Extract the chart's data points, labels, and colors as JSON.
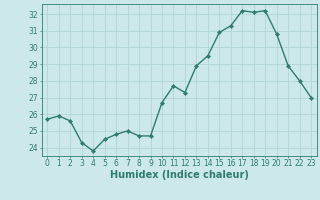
{
  "x": [
    0,
    1,
    2,
    3,
    4,
    5,
    6,
    7,
    8,
    9,
    10,
    11,
    12,
    13,
    14,
    15,
    16,
    17,
    18,
    19,
    20,
    21,
    22,
    23
  ],
  "y": [
    25.7,
    25.9,
    25.6,
    24.3,
    23.8,
    24.5,
    24.8,
    25.0,
    24.7,
    24.7,
    26.7,
    27.7,
    27.3,
    28.9,
    29.5,
    30.9,
    31.3,
    32.2,
    32.1,
    32.2,
    30.8,
    28.9,
    28.0,
    27.0
  ],
  "line_color": "#2e7d6e",
  "marker": "D",
  "markersize": 2.2,
  "linewidth": 1.0,
  "background_color": "#cce8e8",
  "grid_color": "#b0d4d4",
  "xlabel": "Humidex (Indice chaleur)",
  "xlim": [
    -0.5,
    23.5
  ],
  "ylim": [
    23.5,
    32.6
  ],
  "yticks": [
    24,
    25,
    26,
    27,
    28,
    29,
    30,
    31,
    32
  ],
  "xticks": [
    0,
    1,
    2,
    3,
    4,
    5,
    6,
    7,
    8,
    9,
    10,
    11,
    12,
    13,
    14,
    15,
    16,
    17,
    18,
    19,
    20,
    21,
    22,
    23
  ],
  "tick_color": "#2e7d6e",
  "label_color": "#2e7d6e",
  "tick_fontsize": 5.5,
  "xlabel_fontsize": 7.0
}
